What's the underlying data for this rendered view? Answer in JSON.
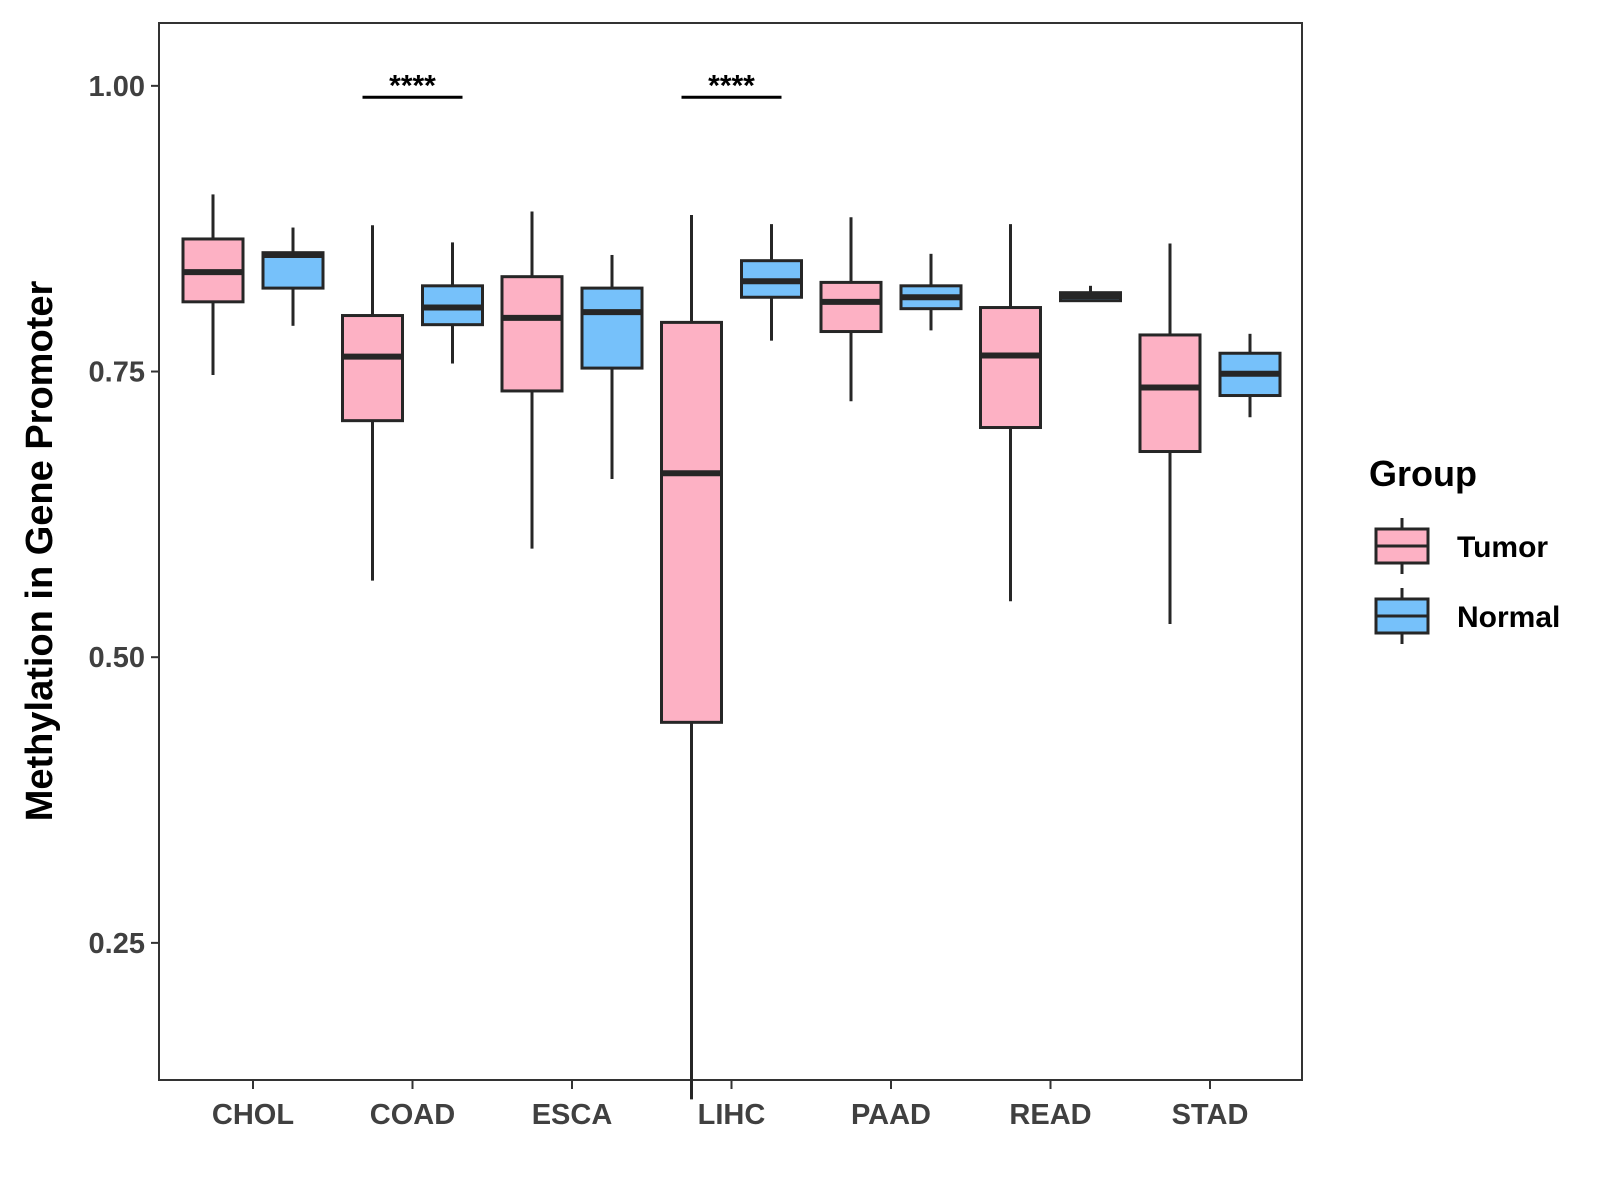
{
  "chart_data": {
    "type": "boxplot",
    "title": "",
    "xlabel": "",
    "ylabel": "Methylation in Gene Promoter",
    "ylim": [
      0.13,
      1.055
    ],
    "yticks": [
      0.25,
      0.5,
      0.75,
      1.0
    ],
    "ytick_labels": [
      "0.25",
      "0.50",
      "0.75",
      "1.00"
    ],
    "categories": [
      "CHOL",
      "COAD",
      "ESCA",
      "LIHC",
      "PAAD",
      "READ",
      "STAD"
    ],
    "series": [
      {
        "name": "Tumor",
        "color": "#fdb1c4",
        "boxes": [
          {
            "min": 0.747,
            "q1": 0.811,
            "median": 0.837,
            "q3": 0.866,
            "max": 0.905
          },
          {
            "min": 0.567,
            "q1": 0.707,
            "median": 0.763,
            "q3": 0.799,
            "max": 0.878
          },
          {
            "min": 0.595,
            "q1": 0.733,
            "median": 0.797,
            "q3": 0.833,
            "max": 0.89
          },
          {
            "min": 0.113,
            "q1": 0.443,
            "median": 0.661,
            "q3": 0.793,
            "max": 0.887
          },
          {
            "min": 0.724,
            "q1": 0.785,
            "median": 0.811,
            "q3": 0.828,
            "max": 0.885
          },
          {
            "min": 0.549,
            "q1": 0.701,
            "median": 0.764,
            "q3": 0.806,
            "max": 0.879
          },
          {
            "min": 0.529,
            "q1": 0.68,
            "median": 0.736,
            "q3": 0.782,
            "max": 0.862
          }
        ]
      },
      {
        "name": "Normal",
        "color": "#76c1fa",
        "boxes": [
          {
            "min": 0.79,
            "q1": 0.823,
            "median": 0.852,
            "q3": 0.854,
            "max": 0.876
          },
          {
            "min": 0.757,
            "q1": 0.791,
            "median": 0.806,
            "q3": 0.825,
            "max": 0.863
          },
          {
            "min": 0.656,
            "q1": 0.753,
            "median": 0.802,
            "q3": 0.823,
            "max": 0.852
          },
          {
            "min": 0.777,
            "q1": 0.815,
            "median": 0.829,
            "q3": 0.847,
            "max": 0.879
          },
          {
            "min": 0.786,
            "q1": 0.805,
            "median": 0.815,
            "q3": 0.825,
            "max": 0.853
          },
          {
            "min": 0.812,
            "q1": 0.812,
            "median": 0.816,
            "q3": 0.819,
            "max": 0.825
          },
          {
            "min": 0.71,
            "q1": 0.729,
            "median": 0.748,
            "q3": 0.766,
            "max": 0.783
          }
        ]
      }
    ],
    "annotations": [
      {
        "category": "COAD",
        "label": "****",
        "y": 0.99
      },
      {
        "category": "LIHC",
        "label": "****",
        "y": 0.99
      }
    ],
    "legend": {
      "title": "Group",
      "position": "right",
      "entries": [
        "Tumor",
        "Normal"
      ]
    },
    "grid": false
  }
}
